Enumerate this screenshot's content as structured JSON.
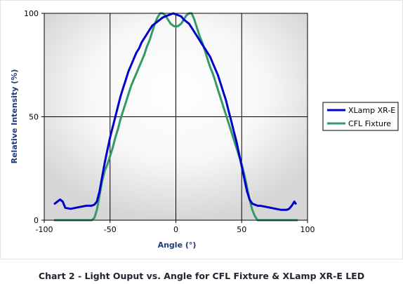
{
  "caption": "Chart 2 - Light Ouput vs. Angle for CFL Fixture & XLamp XR-E LED",
  "chart_data": {
    "type": "line",
    "xlabel": "Angle (°)",
    "ylabel": "Relative Intensity (%)",
    "xlim": [
      -100,
      100
    ],
    "ylim": [
      0,
      100
    ],
    "x_ticks": [
      "-100",
      "-50",
      "0",
      "50",
      "100"
    ],
    "y_ticks": [
      "0",
      "50",
      "100"
    ],
    "grid": true,
    "legend_position": "right",
    "series": [
      {
        "name": "XLamp XR-E",
        "color": "#0000cc",
        "x": [
          -92,
          -90,
          -88,
          -86,
          -84,
          -80,
          -76,
          -72,
          -68,
          -64,
          -62,
          -60,
          -58,
          -56,
          -54,
          -52,
          -50,
          -48,
          -46,
          -44,
          -42,
          -40,
          -38,
          -36,
          -34,
          -32,
          -30,
          -28,
          -26,
          -24,
          -22,
          -20,
          -18,
          -16,
          -14,
          -12,
          -10,
          -8,
          -6,
          -4,
          -2,
          0,
          2,
          4,
          6,
          8,
          10,
          12,
          14,
          16,
          18,
          20,
          22,
          24,
          26,
          28,
          30,
          32,
          34,
          36,
          38,
          40,
          42,
          44,
          46,
          48,
          50,
          52,
          54,
          56,
          58,
          60,
          62,
          64,
          68,
          72,
          76,
          80,
          84,
          86,
          88,
          90,
          91
        ],
        "y": [
          8,
          9,
          10,
          9,
          6,
          5.5,
          6,
          6.5,
          7,
          7,
          7.5,
          9,
          14,
          21,
          28,
          34,
          40,
          45,
          50,
          55,
          60,
          64,
          68,
          72,
          75,
          78,
          81,
          83,
          86,
          88,
          90,
          92,
          94,
          95,
          96,
          97,
          98,
          98.5,
          99,
          99.5,
          100,
          99.5,
          99,
          98.5,
          97,
          96,
          95,
          93,
          91,
          89,
          87,
          85,
          83,
          81,
          79,
          76,
          73,
          70,
          66,
          62,
          58,
          53,
          48,
          43,
          38,
          32,
          26,
          20,
          14,
          10,
          8,
          7.5,
          7,
          7,
          6.5,
          6,
          5.5,
          5,
          5,
          5.5,
          7,
          9,
          8
        ]
      },
      {
        "name": "CFL Fixture",
        "color": "#339966",
        "x": [
          -92,
          -80,
          -70,
          -64,
          -62,
          -60,
          -58,
          -56,
          -54,
          -52,
          -50,
          -48,
          -46,
          -44,
          -42,
          -40,
          -38,
          -36,
          -34,
          -32,
          -30,
          -28,
          -26,
          -24,
          -22,
          -20,
          -18,
          -16,
          -14,
          -12,
          -10,
          -8,
          -6,
          -4,
          -2,
          0,
          2,
          4,
          6,
          8,
          10,
          12,
          14,
          16,
          18,
          20,
          22,
          24,
          26,
          28,
          30,
          32,
          34,
          36,
          38,
          40,
          42,
          44,
          46,
          48,
          50,
          52,
          54,
          56,
          58,
          60,
          62,
          64,
          70,
          80,
          92
        ],
        "y": [
          0,
          0,
          0,
          0,
          1,
          5,
          12,
          19,
          24,
          27,
          31,
          35,
          40,
          44,
          49,
          53,
          57,
          61,
          65,
          68,
          71,
          74,
          77,
          80,
          84,
          87,
          91,
          95,
          98,
          100,
          100,
          99,
          97,
          95,
          94,
          93.5,
          94,
          95,
          97,
          99,
          100,
          100,
          97,
          93,
          89,
          86,
          82,
          78,
          74,
          71,
          67,
          63,
          59,
          55,
          51,
          47,
          43,
          39,
          35,
          31,
          27,
          22,
          16,
          10,
          5,
          2,
          0,
          0,
          0,
          0,
          0
        ]
      }
    ]
  }
}
